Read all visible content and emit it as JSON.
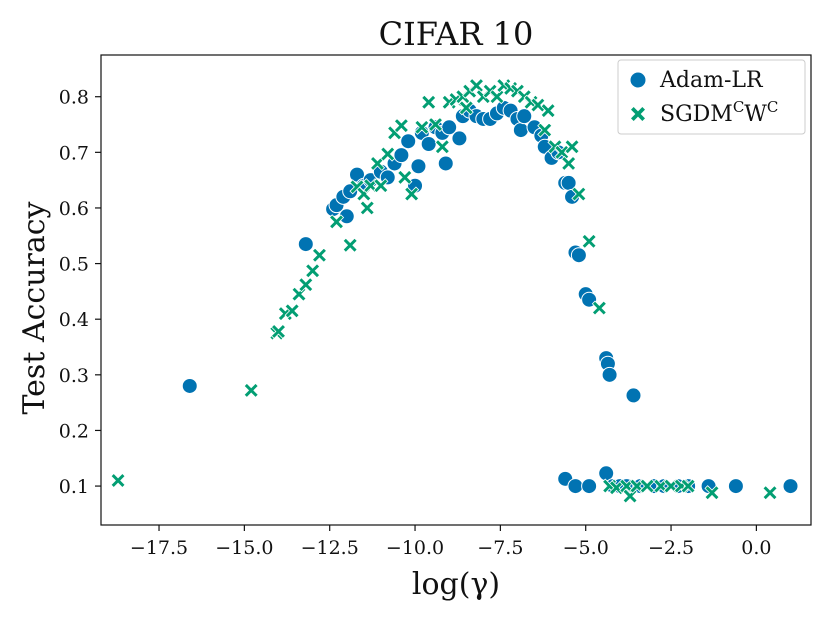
{
  "chart_data": {
    "type": "scatter",
    "title": "CIFAR 10",
    "xlabel": "log(γ)",
    "ylabel": "Test Accuracy",
    "xlim": [
      -19.2,
      1.6
    ],
    "ylim": [
      0.03,
      0.875
    ],
    "xticks": [
      -17.5,
      -15.0,
      -12.5,
      -10.0,
      -7.5,
      -5.0,
      -2.5,
      0.0
    ],
    "xtick_labels": [
      "−17.5",
      "−15.0",
      "−12.5",
      "−10.0",
      "−7.5",
      "−5.0",
      "−2.5",
      "0.0"
    ],
    "yticks": [
      0.1,
      0.2,
      0.3,
      0.4,
      0.5,
      0.6,
      0.7,
      0.8
    ],
    "ytick_labels": [
      "0.1",
      "0.2",
      "0.3",
      "0.4",
      "0.5",
      "0.6",
      "0.7",
      "0.8"
    ],
    "grid": false,
    "legend_position": "top-right",
    "series": [
      {
        "name": "Adam-LR",
        "marker": "circle",
        "color": "#0173b2",
        "points": [
          [
            -16.6,
            0.28
          ],
          [
            -13.2,
            0.535
          ],
          [
            -12.4,
            0.598
          ],
          [
            -12.3,
            0.605
          ],
          [
            -12.1,
            0.62
          ],
          [
            -12.0,
            0.585
          ],
          [
            -11.9,
            0.63
          ],
          [
            -11.7,
            0.66
          ],
          [
            -11.5,
            0.64
          ],
          [
            -11.3,
            0.65
          ],
          [
            -11.0,
            0.665
          ],
          [
            -10.8,
            0.655
          ],
          [
            -10.6,
            0.68
          ],
          [
            -10.4,
            0.695
          ],
          [
            -10.2,
            0.72
          ],
          [
            -10.0,
            0.64
          ],
          [
            -9.9,
            0.675
          ],
          [
            -9.8,
            0.735
          ],
          [
            -9.6,
            0.715
          ],
          [
            -9.4,
            0.745
          ],
          [
            -9.2,
            0.735
          ],
          [
            -9.1,
            0.68
          ],
          [
            -9.0,
            0.745
          ],
          [
            -8.7,
            0.725
          ],
          [
            -8.6,
            0.765
          ],
          [
            -8.4,
            0.775
          ],
          [
            -8.2,
            0.765
          ],
          [
            -8.0,
            0.76
          ],
          [
            -7.8,
            0.76
          ],
          [
            -7.6,
            0.77
          ],
          [
            -7.4,
            0.78
          ],
          [
            -7.2,
            0.775
          ],
          [
            -7.0,
            0.76
          ],
          [
            -6.9,
            0.74
          ],
          [
            -6.8,
            0.765
          ],
          [
            -6.5,
            0.745
          ],
          [
            -6.3,
            0.73
          ],
          [
            -6.2,
            0.71
          ],
          [
            -6.0,
            0.69
          ],
          [
            -5.8,
            0.7
          ],
          [
            -5.6,
            0.645
          ],
          [
            -5.5,
            0.645
          ],
          [
            -5.4,
            0.62
          ],
          [
            -5.3,
            0.52
          ],
          [
            -5.2,
            0.515
          ],
          [
            -5.0,
            0.445
          ],
          [
            -4.9,
            0.435
          ],
          [
            -4.4,
            0.33
          ],
          [
            -4.35,
            0.32
          ],
          [
            -4.3,
            0.3
          ],
          [
            -3.6,
            0.263
          ],
          [
            -5.6,
            0.113
          ],
          [
            -5.3,
            0.1
          ],
          [
            -4.9,
            0.1
          ],
          [
            -4.4,
            0.123
          ],
          [
            -4.2,
            0.1
          ],
          [
            -4.0,
            0.1
          ],
          [
            -3.8,
            0.1
          ],
          [
            -3.4,
            0.1
          ],
          [
            -3.0,
            0.1
          ],
          [
            -2.7,
            0.1
          ],
          [
            -2.3,
            0.1
          ],
          [
            -2.0,
            0.1
          ],
          [
            -1.4,
            0.1
          ],
          [
            -0.6,
            0.1
          ],
          [
            1.0,
            0.1
          ]
        ]
      },
      {
        "name": "SGDM^C W^C",
        "legend_parts": [
          "SGDM",
          "C",
          "W",
          "C"
        ],
        "marker": "x",
        "color": "#029e73",
        "points": [
          [
            -18.7,
            0.11
          ],
          [
            -14.8,
            0.272
          ],
          [
            -14.05,
            0.375
          ],
          [
            -14.0,
            0.378
          ],
          [
            -13.8,
            0.41
          ],
          [
            -13.6,
            0.415
          ],
          [
            -13.4,
            0.445
          ],
          [
            -13.2,
            0.462
          ],
          [
            -13.0,
            0.487
          ],
          [
            -12.8,
            0.515
          ],
          [
            -12.3,
            0.575
          ],
          [
            -11.9,
            0.533
          ],
          [
            -11.7,
            0.638
          ],
          [
            -11.5,
            0.625
          ],
          [
            -11.4,
            0.6
          ],
          [
            -11.3,
            0.64
          ],
          [
            -11.1,
            0.68
          ],
          [
            -11.0,
            0.64
          ],
          [
            -10.8,
            0.697
          ],
          [
            -10.6,
            0.735
          ],
          [
            -10.4,
            0.748
          ],
          [
            -10.3,
            0.655
          ],
          [
            -10.1,
            0.625
          ],
          [
            -9.8,
            0.745
          ],
          [
            -9.6,
            0.79
          ],
          [
            -9.4,
            0.75
          ],
          [
            -9.2,
            0.71
          ],
          [
            -9.0,
            0.79
          ],
          [
            -8.8,
            0.795
          ],
          [
            -8.6,
            0.8
          ],
          [
            -8.5,
            0.78
          ],
          [
            -8.4,
            0.81
          ],
          [
            -8.2,
            0.82
          ],
          [
            -8.0,
            0.8
          ],
          [
            -7.8,
            0.81
          ],
          [
            -7.6,
            0.8
          ],
          [
            -7.4,
            0.82
          ],
          [
            -7.2,
            0.815
          ],
          [
            -7.0,
            0.81
          ],
          [
            -6.8,
            0.8
          ],
          [
            -6.6,
            0.79
          ],
          [
            -6.4,
            0.785
          ],
          [
            -6.2,
            0.74
          ],
          [
            -6.1,
            0.775
          ],
          [
            -5.9,
            0.71
          ],
          [
            -5.7,
            0.7
          ],
          [
            -5.5,
            0.68
          ],
          [
            -5.4,
            0.71
          ],
          [
            -5.2,
            0.625
          ],
          [
            -4.9,
            0.54
          ],
          [
            -4.6,
            0.42
          ],
          [
            -4.3,
            0.1
          ],
          [
            -4.1,
            0.097
          ],
          [
            -3.8,
            0.1
          ],
          [
            -3.7,
            0.082
          ],
          [
            -3.5,
            0.1
          ],
          [
            -3.2,
            0.1
          ],
          [
            -2.8,
            0.1
          ],
          [
            -2.5,
            0.1
          ],
          [
            -2.2,
            0.1
          ],
          [
            -2.0,
            0.1
          ],
          [
            -1.3,
            0.088
          ],
          [
            0.4,
            0.088
          ]
        ]
      }
    ]
  }
}
